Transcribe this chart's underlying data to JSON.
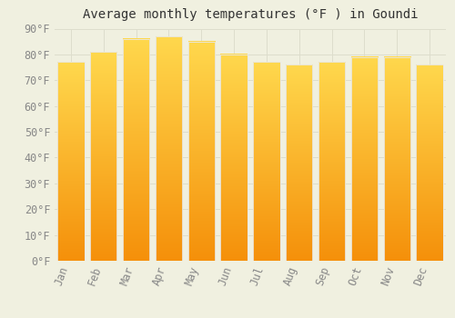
{
  "title": "Average monthly temperatures (°F ) in Goundi",
  "months": [
    "Jan",
    "Feb",
    "Mar",
    "Apr",
    "May",
    "Jun",
    "Jul",
    "Aug",
    "Sep",
    "Oct",
    "Nov",
    "Dec"
  ],
  "values": [
    77,
    81,
    86,
    87,
    85,
    80,
    77,
    76,
    77,
    79,
    79,
    76
  ],
  "bar_color_top": "#FFD84D",
  "bar_color_bottom": "#F5900A",
  "bar_edge_color": "#E8E8E8",
  "background_color": "#F0F0E0",
  "grid_color": "#DDDDCC",
  "ylim": [
    0,
    90
  ],
  "yticks": [
    0,
    10,
    20,
    30,
    40,
    50,
    60,
    70,
    80,
    90
  ],
  "ytick_labels": [
    "0°F",
    "10°F",
    "20°F",
    "30°F",
    "40°F",
    "50°F",
    "60°F",
    "70°F",
    "80°F",
    "90°F"
  ],
  "title_fontsize": 10,
  "tick_fontsize": 8.5,
  "bar_width": 0.82
}
